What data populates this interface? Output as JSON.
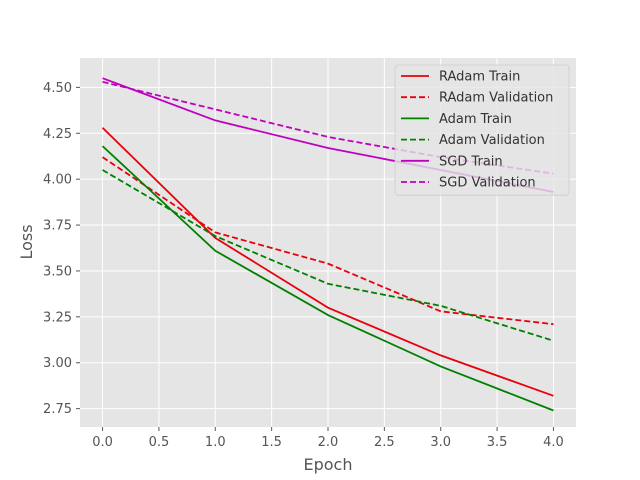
{
  "chart_data": {
    "type": "line",
    "title": "",
    "xlabel": "Epoch",
    "ylabel": "Loss",
    "xlim": [
      -0.2,
      4.2
    ],
    "ylim": [
      2.65,
      4.66
    ],
    "xticks": [
      0.0,
      0.5,
      1.0,
      1.5,
      2.0,
      2.5,
      3.0,
      3.5,
      4.0
    ],
    "xtick_labels": [
      "0.0",
      "0.5",
      "1.0",
      "1.5",
      "2.0",
      "2.5",
      "3.0",
      "3.5",
      "4.0"
    ],
    "yticks": [
      2.75,
      3.0,
      3.25,
      3.5,
      3.75,
      4.0,
      4.25,
      4.5
    ],
    "ytick_labels": [
      "2.75",
      "3.00",
      "3.25",
      "3.50",
      "3.75",
      "4.00",
      "4.25",
      "4.50"
    ],
    "grid": true,
    "legend_position": "top-right",
    "x": [
      0,
      1,
      2,
      3,
      4
    ],
    "series": [
      {
        "name": "RAdam Train",
        "color": "#e8000b",
        "dash": "solid",
        "values": [
          4.28,
          3.68,
          3.3,
          3.04,
          2.82
        ]
      },
      {
        "name": "RAdam Validation",
        "color": "#e8000b",
        "dash": "dashed",
        "values": [
          4.12,
          3.71,
          3.54,
          3.28,
          3.21
        ]
      },
      {
        "name": "Adam Train",
        "color": "#008000",
        "dash": "solid",
        "values": [
          4.18,
          3.61,
          3.26,
          2.98,
          2.74
        ]
      },
      {
        "name": "Adam Validation",
        "color": "#008000",
        "dash": "dashed",
        "values": [
          4.05,
          3.69,
          3.43,
          3.31,
          3.12
        ]
      },
      {
        "name": "SGD Train",
        "color": "#bf00bf",
        "dash": "solid",
        "values": [
          4.55,
          4.32,
          4.17,
          4.05,
          3.93
        ]
      },
      {
        "name": "SGD Validation",
        "color": "#bf00bf",
        "dash": "dashed",
        "values": [
          4.53,
          4.38,
          4.23,
          4.12,
          4.03
        ]
      }
    ]
  }
}
